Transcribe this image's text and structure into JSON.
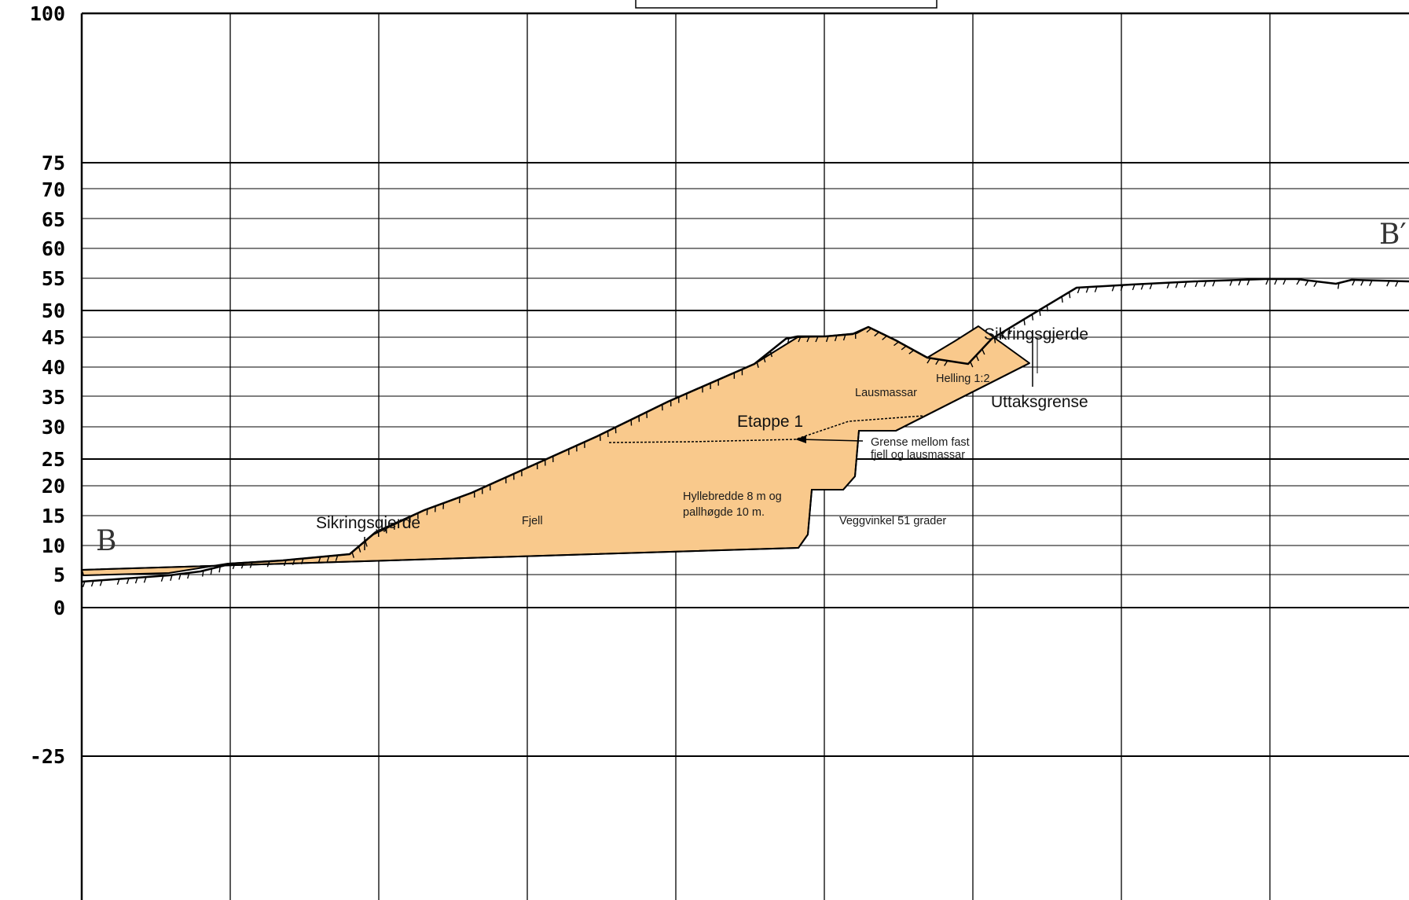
{
  "section": {
    "start_label": "B",
    "end_label": "B′"
  },
  "axis": {
    "y_ticks": [
      "100",
      "75",
      "70",
      "65",
      "60",
      "55",
      "50",
      "45",
      "40",
      "35",
      "30",
      "25",
      "20",
      "15",
      "10",
      "5",
      "0",
      "-25"
    ]
  },
  "labels": {
    "sikringsgjerde_left": "Sikringsgjerde",
    "sikringsgjerde_right": "Sikringsgjerde",
    "uttaksgrense": "Uttaksgrense",
    "etappe": "Etappe 1",
    "lausmassar": "Lausmassar",
    "helling": "Helling 1:2",
    "grense_line1": "Grense mellom fast",
    "grense_line2": "fjell og lausmassar",
    "hylle_line1": "Hyllebredde 8 m og",
    "hylle_line2": "pallhøgde 10 m.",
    "fjell": "Fjell",
    "veggvinkel": "Veggvinkel 51 grader"
  },
  "colors": {
    "fill": "#f9c98c",
    "line": "#000000",
    "grid": "#000000"
  }
}
